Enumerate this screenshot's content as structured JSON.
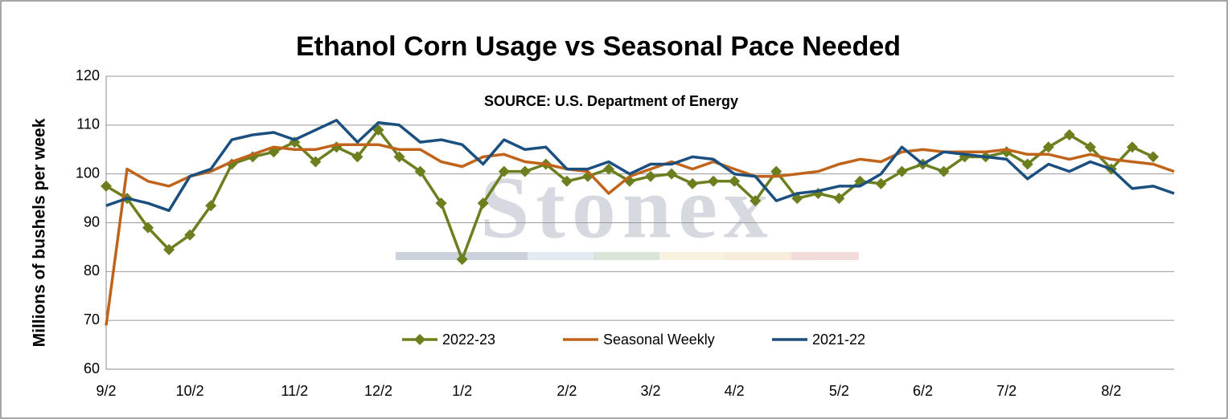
{
  "chart_data": {
    "type": "line",
    "title": "Ethanol Corn Usage vs Seasonal Pace Needed",
    "subtitle": "SOURCE: U.S. Department of Energy",
    "watermark": "Stonex",
    "y_label": "Millions of bushels per week",
    "categories": [
      "9/2",
      null,
      null,
      null,
      "10/2",
      null,
      null,
      null,
      null,
      "11/2",
      null,
      null,
      null,
      "12/2",
      null,
      null,
      null,
      "1/2",
      null,
      null,
      null,
      null,
      "2/2",
      null,
      null,
      null,
      "3/2",
      null,
      null,
      null,
      "4/2",
      null,
      null,
      null,
      null,
      "5/2",
      null,
      null,
      null,
      "6/2",
      null,
      null,
      null,
      "7/2",
      null,
      null,
      null,
      null,
      "8/2",
      null,
      null,
      null
    ],
    "series": [
      {
        "name": "2022-23",
        "color": "#6b7f1f",
        "marker": "diamond",
        "values": [
          97.5,
          95,
          89,
          84.5,
          87.5,
          93.5,
          102,
          103.5,
          104.5,
          106.5,
          102.5,
          105.5,
          103.5,
          109,
          103.5,
          100.5,
          94,
          82.5,
          94,
          100.5,
          100.5,
          102,
          98.5,
          99.5,
          101,
          98.5,
          99.5,
          100,
          98,
          98.5,
          98.5,
          94.5,
          100.5,
          95,
          96,
          95,
          98.5,
          98,
          100.5,
          102,
          100.5,
          103.5,
          103.5,
          104.5,
          102,
          105.5,
          108,
          105.5,
          101,
          105.5,
          103.5,
          null
        ]
      },
      {
        "name": "Seasonal Weekly",
        "color": "#c0641b",
        "values": [
          69,
          101,
          98.5,
          97.5,
          99.5,
          100.5,
          102.5,
          104,
          105.5,
          105,
          105,
          106,
          106,
          106,
          105,
          105,
          102.5,
          101.5,
          103.5,
          104,
          102.5,
          102,
          101,
          100.5,
          96,
          99.5,
          101,
          102.5,
          101,
          102.5,
          101,
          99.5,
          99.5,
          100,
          100.5,
          102,
          103,
          102.5,
          104.5,
          105,
          104.5,
          104.5,
          104.5,
          105,
          104,
          104,
          103,
          104,
          103,
          102.5,
          102,
          100.5
        ]
      },
      {
        "name": "2021-22",
        "color": "#1a4f7f",
        "values": [
          93.5,
          95,
          94,
          92.5,
          99.5,
          101,
          107,
          108,
          108.5,
          107,
          109,
          111,
          106.5,
          110.5,
          110,
          106.5,
          107,
          106,
          102,
          107,
          105,
          105.5,
          101,
          101,
          102.5,
          100,
          102,
          102,
          103.5,
          103,
          100,
          99.5,
          94.5,
          96,
          96.5,
          97.5,
          97.5,
          100,
          105.5,
          102,
          104.5,
          104,
          103.5,
          103,
          99,
          102,
          100.5,
          102.5,
          101,
          97,
          97.5,
          96
        ]
      }
    ],
    "ylim": [
      60,
      120
    ],
    "yticks": [
      60,
      70,
      80,
      90,
      100,
      110,
      120
    ],
    "grid": true,
    "legend": "bottom"
  }
}
